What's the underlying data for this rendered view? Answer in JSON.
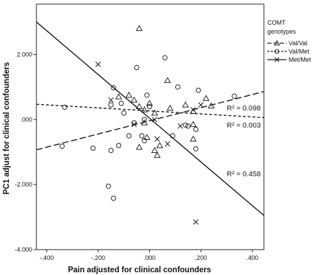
{
  "chart_data": {
    "type": "scatter",
    "xlabel": "Pain adjusted for clinical confounders",
    "ylabel": "PC1 adjust for clinical confounders",
    "xlim": [
      -0.44,
      0.445
    ],
    "ylim": [
      -4.0,
      3.55
    ],
    "x_ticks": [
      -0.4,
      -0.2,
      0.0,
      0.2,
      0.4
    ],
    "x_tick_labels": [
      "-.400",
      "-.200",
      ".000",
      ".200",
      ".400"
    ],
    "y_ticks": [
      -4,
      -2,
      0,
      2
    ],
    "y_tick_labels": [
      "-4.000",
      "-2.000",
      ".000",
      "2.000"
    ],
    "grid": false,
    "legend": {
      "title_lines": [
        "COMT",
        "genotypes"
      ],
      "placement": "right"
    },
    "series": [
      {
        "name": "Val/Val",
        "marker": "triangle",
        "line_style": "long-dash",
        "r2_label": "R² = 0.003",
        "fit_line": {
          "x": [
            -0.44,
            0.445
          ],
          "y": [
            -0.93,
            0.86
          ]
        },
        "points": [
          {
            "x": -0.04,
            "y": 2.8
          },
          {
            "x": 0.07,
            "y": 1.2
          },
          {
            "x": -0.08,
            "y": 0.75
          },
          {
            "x": -0.06,
            "y": 0.6
          },
          {
            "x": -0.04,
            "y": 0.4
          },
          {
            "x": -0.02,
            "y": 0.3
          },
          {
            "x": 0.0,
            "y": 0.5
          },
          {
            "x": 0.02,
            "y": 0.2
          },
          {
            "x": 0.08,
            "y": 0.35
          },
          {
            "x": 0.14,
            "y": 0.45
          },
          {
            "x": 0.17,
            "y": 0.25
          },
          {
            "x": 0.22,
            "y": 0.65
          },
          {
            "x": 0.24,
            "y": 0.42
          },
          {
            "x": -0.02,
            "y": -0.1
          },
          {
            "x": -0.01,
            "y": -0.55
          },
          {
            "x": 0.02,
            "y": -0.95
          },
          {
            "x": 0.03,
            "y": -1.1
          },
          {
            "x": 0.04,
            "y": -0.8
          },
          {
            "x": -0.04,
            "y": -0.85
          },
          {
            "x": 0.17,
            "y": -0.15
          },
          {
            "x": 0.17,
            "y": -0.6
          },
          {
            "x": -0.12,
            "y": 0.7
          }
        ]
      },
      {
        "name": "Val/Met",
        "marker": "circle",
        "line_style": "short-dash",
        "r2_label": "R² = 0.098",
        "fit_line": {
          "x": [
            -0.44,
            0.445
          ],
          "y": [
            0.47,
            0.06
          ]
        },
        "points": [
          {
            "x": -0.05,
            "y": 1.6
          },
          {
            "x": 0.06,
            "y": 1.9
          },
          {
            "x": 0.11,
            "y": 1.0
          },
          {
            "x": -0.14,
            "y": 0.98
          },
          {
            "x": -0.33,
            "y": 0.38
          },
          {
            "x": -0.11,
            "y": 0.5
          },
          {
            "x": -0.15,
            "y": 0.45
          },
          {
            "x": -0.1,
            "y": 0.2
          },
          {
            "x": -0.06,
            "y": -0.1
          },
          {
            "x": -0.02,
            "y": 0.0
          },
          {
            "x": -0.01,
            "y": 0.75
          },
          {
            "x": 0.0,
            "y": 0.4
          },
          {
            "x": 0.15,
            "y": -0.2
          },
          {
            "x": 0.18,
            "y": -0.3
          },
          {
            "x": 0.19,
            "y": 0.9
          },
          {
            "x": 0.33,
            "y": 0.72
          },
          {
            "x": -0.34,
            "y": -0.82
          },
          {
            "x": -0.22,
            "y": -0.88
          },
          {
            "x": -0.15,
            "y": -0.95
          },
          {
            "x": -0.12,
            "y": -0.8
          },
          {
            "x": -0.08,
            "y": -0.5
          },
          {
            "x": -0.03,
            "y": -0.5
          },
          {
            "x": -0.02,
            "y": -0.65
          },
          {
            "x": 0.09,
            "y": -0.5
          },
          {
            "x": 0.18,
            "y": -0.9
          },
          {
            "x": -0.16,
            "y": -2.05
          },
          {
            "x": -0.14,
            "y": -2.42
          },
          {
            "x": 0.14,
            "y": -0.17
          }
        ]
      },
      {
        "name": "Met/Met",
        "marker": "x",
        "line_style": "solid",
        "r2_label": "R² = 0.458",
        "fit_line": {
          "x": [
            -0.44,
            0.445
          ],
          "y": [
            3.0,
            -2.95
          ]
        },
        "points": [
          {
            "x": -0.2,
            "y": 1.7
          },
          {
            "x": -0.15,
            "y": 0.6
          },
          {
            "x": -0.06,
            "y": -0.15
          },
          {
            "x": 0.02,
            "y": 0.0
          },
          {
            "x": 0.03,
            "y": -0.6
          },
          {
            "x": 0.07,
            "y": -0.75
          },
          {
            "x": 0.12,
            "y": -0.2
          },
          {
            "x": 0.17,
            "y": 0.3
          },
          {
            "x": 0.2,
            "y": 0.45
          },
          {
            "x": 0.18,
            "y": -3.15
          }
        ]
      }
    ]
  }
}
